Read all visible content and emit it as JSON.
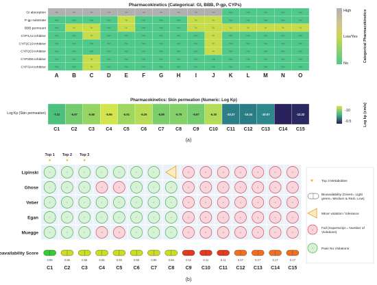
{
  "chart_data": [
    {
      "type": "heatmap",
      "title": "Pharmacokinetics (Categorical: GI, BBB, P-gp, CYPs)",
      "rows": [
        "GI absorption",
        "P-gp substrate",
        "BBB permeant",
        "CYP1A2 inhibitor",
        "CYP2C19 inhibitor",
        "CYP2C9 inhibitor",
        "CYP2D6 inhibitor",
        "CYP3A4 inhibitor"
      ],
      "columns": [
        "A",
        "B",
        "C",
        "D",
        "E",
        "F",
        "G",
        "H",
        "I",
        "J",
        "K",
        "L",
        "M",
        "N",
        "O"
      ],
      "cell_labels": [
        "High",
        "No",
        "Yes"
      ],
      "values": [
        [
          2,
          2,
          2,
          2,
          2,
          2,
          2,
          2,
          2,
          2,
          0,
          0,
          0,
          0,
          0
        ],
        [
          0,
          0,
          0,
          0,
          1,
          0,
          0,
          0,
          1,
          1,
          0,
          0,
          0,
          0,
          0
        ],
        [
          0,
          1,
          1,
          0,
          1,
          0,
          0,
          0,
          1,
          1,
          1,
          1,
          1,
          1,
          1
        ],
        [
          0,
          0,
          1,
          0,
          0,
          0,
          0,
          0,
          0,
          1,
          0,
          0,
          0,
          0,
          0
        ],
        [
          0,
          0,
          0,
          0,
          0,
          0,
          0,
          0,
          0,
          1,
          0,
          0,
          0,
          0,
          0
        ],
        [
          0,
          0,
          0,
          0,
          0,
          0,
          0,
          0,
          0,
          1,
          0,
          0,
          0,
          0,
          0
        ],
        [
          0,
          0,
          1,
          0,
          0,
          0,
          0,
          0,
          0,
          0,
          0,
          0,
          0,
          0,
          0
        ],
        [
          0,
          0,
          1,
          0,
          0,
          0,
          0,
          0,
          0,
          0,
          0,
          0,
          0,
          0,
          0
        ]
      ],
      "colors": {
        "No": "#4fc98a",
        "Yes": "#c6dc48",
        "High": "#b0b0b0"
      },
      "colorbar": {
        "labels": [
          "High",
          "Low/Yes",
          "No"
        ],
        "title": "Categorical Pharmacokinetics"
      }
    },
    {
      "type": "heatmap",
      "title": "Pharmacokinetics: Skin permeation (Numeric: Log Kp)",
      "row": "Log Kp (Skin permeation)",
      "columns": [
        "C1",
        "C2",
        "C3",
        "C4",
        "C5",
        "C6",
        "C7",
        "C8",
        "C9",
        "C10",
        "C11",
        "C12",
        "C13",
        "C14",
        "C15"
      ],
      "values": [
        -7.41,
        -6.97,
        -6.6,
        -5.96,
        -6.51,
        -6.26,
        -6.89,
        -6.79,
        -6.97,
        -6.3,
        -10.27,
        -10.34,
        -10.07,
        -12.38,
        -12.22
      ],
      "value_labels": [
        "-7.41",
        "-6.97",
        "-6.60",
        "-5.96",
        "-6.51",
        "-6.26",
        "-6.89",
        "-6.79",
        "-6.97",
        "-6.30",
        "-10.27",
        "-10.34",
        "-10.07",
        "",
        "-12.22"
      ],
      "colorbar": {
        "ticks": [
          "-10",
          "-0.5"
        ],
        "title": "Log kp (cm/s)"
      }
    },
    {
      "type": "table",
      "rows": [
        "Lipinski",
        "Ghose",
        "Veber",
        "Egan",
        "Muegge"
      ],
      "columns": [
        "C1",
        "C2",
        "C3",
        "C4",
        "C5",
        "C6",
        "C7",
        "C8",
        "C9",
        "C10",
        "C11",
        "C12",
        "C13",
        "C14",
        "C15"
      ],
      "status": [
        [
          "pass",
          "pass",
          "pass",
          "pass",
          "pass",
          "pass",
          "pass",
          "minor",
          "fail",
          "fail",
          "fail",
          "fail",
          "fail",
          "fail",
          "fail"
        ],
        [
          "pass",
          "pass",
          "pass",
          "fail",
          "fail",
          "pass",
          "pass",
          "pass",
          "fail",
          "fail",
          "fail",
          "fail",
          "fail",
          "fail",
          "fail"
        ],
        [
          "pass",
          "pass",
          "pass",
          "pass",
          "pass",
          "pass",
          "pass",
          "pass",
          "fail",
          "fail",
          "fail",
          "fail",
          "fail",
          "fail",
          "fail"
        ],
        [
          "pass",
          "pass",
          "pass",
          "pass",
          "pass",
          "pass",
          "pass",
          "pass",
          "fail",
          "fail",
          "fail",
          "fail",
          "fail",
          "fail",
          "fail"
        ],
        [
          "pass",
          "pass",
          "pass",
          "fail",
          "fail",
          "pass",
          "pass",
          "pass",
          "fail",
          "fail",
          "fail",
          "fail",
          "fail",
          "fail",
          "fail"
        ]
      ],
      "top3": [
        "Top 1",
        "Top 2",
        "Top 3"
      ],
      "bioavailability_label": "Bioavailability Score",
      "bioavailability": [
        "0.85",
        "0.55",
        "0.55",
        "0.55",
        "0.55",
        "0.55",
        "0.55",
        "0.55",
        "0.11",
        "0.11",
        "0.11",
        "0.17",
        "0.17",
        "0.17",
        "0.17"
      ],
      "bio_colors": {
        "0.85": "#33cc33",
        "0.55": "#ccdd22",
        "0.11": "#e43a1e",
        "0.17": "#f07020"
      },
      "pass_mark": "✓",
      "fail_mark": "×",
      "legend": [
        {
          "kind": "star",
          "label": "Top 3 Metabolites"
        },
        {
          "kind": "pill",
          "label": "Bioavailability (Green= Light green= Medium & Red= Low)"
        },
        {
          "kind": "triangle",
          "label": "Minor violation / tolerance"
        },
        {
          "kind": "fail",
          "label": "Fail (Superscript = Number of Violations)"
        },
        {
          "kind": "pass",
          "label": "Pass No Violations"
        }
      ]
    }
  ],
  "captions": {
    "a": "(a)",
    "b": "(b)"
  }
}
